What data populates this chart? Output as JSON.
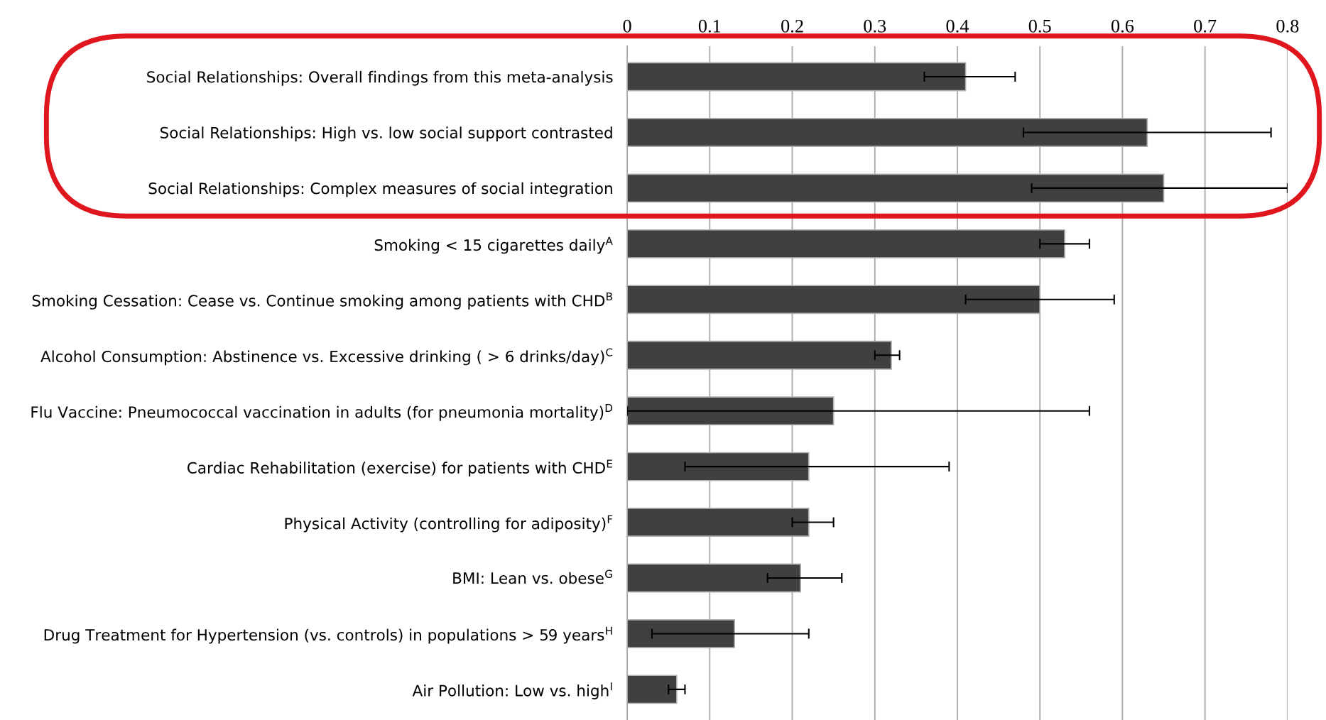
{
  "chart_data": {
    "type": "bar",
    "orientation": "horizontal",
    "categories": [
      "Social Relationships: Overall findings from this meta-analysis",
      "Social Relationships: High vs. low social support contrasted",
      "Social Relationships: Complex measures of social integration",
      "Smoking < 15 cigarettes daily$^{A}$",
      "Smoking Cessation: Cease vs. Continue smoking among patients with CHD$^{B}$",
      "Alcohol Consumption: Abstinence vs. Excessive drinking ( > 6 drinks/day)$^{C}$",
      "Flu Vaccine: Pneumococcal vaccination in adults (for pneumonia mortality)$^{D}$",
      "Cardiac Rehabilitation (exercise) for patients with CHD$^{E}$",
      "Physical Activity (controlling for adiposity)$^{F}$",
      "BMI: Lean vs. obese$^{G}$",
      "Drug Treatment for Hypertension (vs. controls) in populations > 59 years$^{H}$",
      "Air Pollution: Low vs. high$^{I}$"
    ],
    "values": [
      0.41,
      0.63,
      0.65,
      0.53,
      0.5,
      0.32,
      0.25,
      0.22,
      0.22,
      0.21,
      0.13,
      0.06
    ],
    "errors": [
      [
        0.36,
        0.47
      ],
      [
        0.48,
        0.78
      ],
      [
        0.49,
        0.8
      ],
      [
        0.5,
        0.56
      ],
      [
        0.41,
        0.59
      ],
      [
        0.3,
        0.33
      ],
      [
        0.0,
        0.56
      ],
      [
        0.07,
        0.39
      ],
      [
        0.2,
        0.25
      ],
      [
        0.17,
        0.26
      ],
      [
        0.03,
        0.22
      ],
      [
        0.05,
        0.07
      ]
    ],
    "color": "#404040",
    "xlim": [
      0,
      0.8
    ],
    "xticks": [
      0,
      0.1,
      0.2,
      0.3,
      0.4,
      0.5,
      0.6,
      0.7,
      0.8
    ],
    "grid": "x"
  }
}
